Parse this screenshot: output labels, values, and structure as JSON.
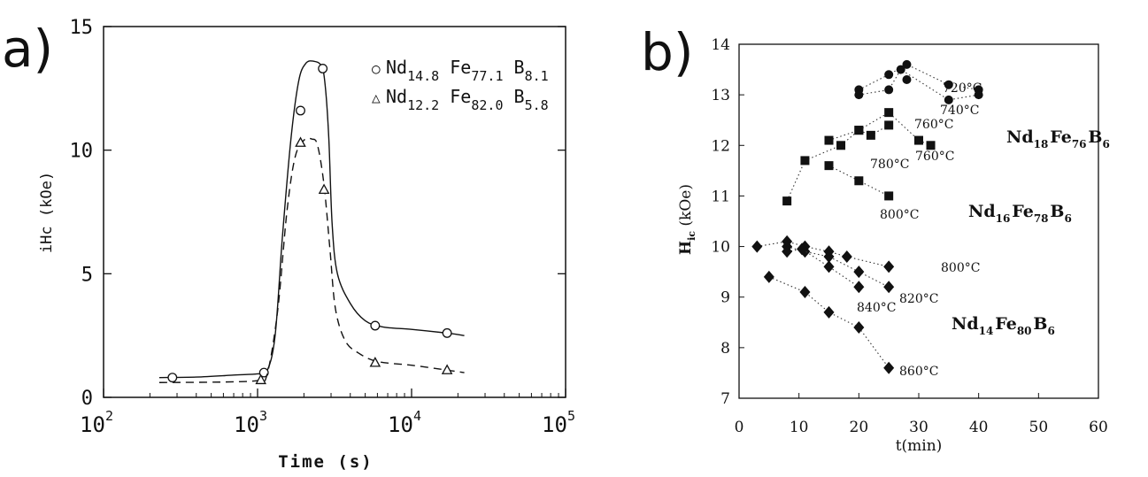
{
  "panels": {
    "a": "a)",
    "b": "b)"
  },
  "chart_data": [
    {
      "type": "line",
      "id": "a",
      "xlabel": "Time (s)",
      "ylabel": "iHc (kOe)",
      "xscale": "log",
      "xlim": [
        100,
        100000
      ],
      "ylim": [
        0,
        15
      ],
      "x_ticks": [
        {
          "base": "10",
          "exp": "2",
          "value": 100
        },
        {
          "base": "10",
          "exp": "3",
          "value": 1000
        },
        {
          "base": "10",
          "exp": "4",
          "value": 10000
        },
        {
          "base": "10",
          "exp": "5",
          "value": 100000
        }
      ],
      "y_ticks": [
        "0",
        "5",
        "10",
        "15"
      ],
      "legend_position": "top-right",
      "grid": false,
      "series": [
        {
          "name": "Nd14.8Fe77.1B8.1",
          "legend": {
            "symbol": "○",
            "parts": [
              [
                "Nd",
                "14.8"
              ],
              [
                "Fe",
                "77.1"
              ],
              [
                "B",
                "8.1"
              ]
            ]
          },
          "marker": "circle",
          "line": "solid",
          "points": [
            [
              280,
              0.8
            ],
            [
              1100,
              1.0
            ],
            [
              1900,
              11.6
            ],
            [
              2650,
              13.3
            ],
            [
              5800,
              2.9
            ],
            [
              17000,
              2.6
            ]
          ],
          "curve": [
            [
              230,
              0.8
            ],
            [
              400,
              0.82
            ],
            [
              700,
              0.9
            ],
            [
              1000,
              0.95
            ],
            [
              1150,
              1.05
            ],
            [
              1300,
              2.5
            ],
            [
              1450,
              6.5
            ],
            [
              1650,
              10.5
            ],
            [
              1850,
              12.8
            ],
            [
              2050,
              13.5
            ],
            [
              2300,
              13.6
            ],
            [
              2600,
              13.4
            ],
            [
              2750,
              12.6
            ],
            [
              2900,
              10.5
            ],
            [
              3050,
              7.0
            ],
            [
              3300,
              5.0
            ],
            [
              4000,
              3.8
            ],
            [
              5000,
              3.1
            ],
            [
              6500,
              2.85
            ],
            [
              10000,
              2.75
            ],
            [
              17000,
              2.6
            ],
            [
              22000,
              2.5
            ]
          ]
        },
        {
          "name": "Nd12.2Fe82.0B5.8",
          "legend": {
            "symbol": "△",
            "parts": [
              [
                "Nd",
                "12.2"
              ],
              [
                "Fe",
                "82.0"
              ],
              [
                "B",
                "5.8"
              ]
            ]
          },
          "marker": "triangle",
          "line": "dashed",
          "points": [
            [
              1050,
              0.7
            ],
            [
              1900,
              10.3
            ],
            [
              2700,
              8.4
            ],
            [
              5800,
              1.4
            ],
            [
              17000,
              1.1
            ]
          ],
          "curve": [
            [
              230,
              0.6
            ],
            [
              600,
              0.62
            ],
            [
              1000,
              0.68
            ],
            [
              1150,
              0.9
            ],
            [
              1350,
              3.5
            ],
            [
              1550,
              7.5
            ],
            [
              1750,
              9.7
            ],
            [
              2000,
              10.4
            ],
            [
              2250,
              10.45
            ],
            [
              2450,
              10.2
            ],
            [
              2700,
              8.6
            ],
            [
              2950,
              6.0
            ],
            [
              3200,
              3.6
            ],
            [
              3700,
              2.3
            ],
            [
              4500,
              1.8
            ],
            [
              6000,
              1.45
            ],
            [
              10000,
              1.3
            ],
            [
              17000,
              1.1
            ],
            [
              22000,
              1.0
            ]
          ]
        }
      ]
    },
    {
      "type": "scatter",
      "id": "b",
      "xlabel": "t(min)",
      "ylabel": {
        "main": "H",
        "sub": "ic",
        "rest": "(kOe)"
      },
      "xlim": [
        0,
        60
      ],
      "ylim": [
        7,
        14
      ],
      "x_ticks": [
        "0",
        "10",
        "20",
        "30",
        "40",
        "50",
        "60"
      ],
      "y_ticks": [
        "7",
        "8",
        "9",
        "10",
        "11",
        "12",
        "13",
        "14"
      ],
      "grid": false,
      "series": [
        {
          "name": "720°C",
          "composition": "Nd18Fe76B6",
          "marker": "circle",
          "points": [
            [
              20,
              13.1
            ],
            [
              25,
              13.4
            ],
            [
              28,
              13.6
            ],
            [
              35,
              13.2
            ],
            [
              40,
              13.1
            ]
          ]
        },
        {
          "name": "740°C",
          "composition": "Nd18Fe76B6",
          "marker": "circle",
          "points": [
            [
              20,
              13.0
            ],
            [
              25,
              13.1
            ],
            [
              27,
              13.5
            ],
            [
              35,
              12.9
            ],
            [
              40,
              13.0
            ]
          ]
        },
        {
          "name": "760°C",
          "composition": "Nd18Fe76B6",
          "marker": "circle",
          "points": [
            [
              28,
              13.3
            ]
          ]
        },
        {
          "name": "760°C",
          "composition": "Nd16Fe78B6",
          "marker": "square",
          "points": [
            [
              15,
              12.1
            ],
            [
              20,
              12.3
            ],
            [
              25,
              12.65
            ],
            [
              30,
              12.1
            ],
            [
              32,
              12.0
            ]
          ]
        },
        {
          "name": "780°C",
          "composition": "Nd16Fe78B6",
          "marker": "square",
          "points": [
            [
              8,
              10.9
            ],
            [
              11,
              11.7
            ],
            [
              17,
              12.0
            ],
            [
              20,
              12.3
            ],
            [
              22,
              12.2
            ],
            [
              25,
              12.4
            ]
          ]
        },
        {
          "name": "800°C",
          "composition": "Nd16Fe78B6",
          "marker": "square",
          "points": [
            [
              15,
              11.6
            ],
            [
              20,
              11.3
            ],
            [
              25,
              11.0
            ]
          ]
        },
        {
          "name": "800°C",
          "composition": "Nd14Fe80B6",
          "marker": "diamond",
          "points": [
            [
              3,
              10.0
            ],
            [
              8,
              10.1
            ],
            [
              11,
              10.0
            ],
            [
              15,
              9.9
            ],
            [
              18,
              9.8
            ],
            [
              25,
              9.6
            ]
          ]
        },
        {
          "name": "820°C",
          "composition": "Nd14Fe80B6",
          "marker": "diamond",
          "points": [
            [
              8,
              10.0
            ],
            [
              11,
              9.9
            ],
            [
              15,
              9.8
            ],
            [
              20,
              9.5
            ],
            [
              25,
              9.2
            ]
          ]
        },
        {
          "name": "840°C",
          "composition": "Nd14Fe80B6",
          "marker": "diamond",
          "points": [
            [
              8,
              9.9
            ],
            [
              10.5,
              9.95
            ],
            [
              15,
              9.6
            ],
            [
              20,
              9.2
            ]
          ]
        },
        {
          "name": "860°C",
          "composition": "Nd14Fe80B6",
          "marker": "diamond",
          "points": [
            [
              5,
              9.4
            ],
            [
              11,
              9.1
            ],
            [
              15,
              8.7
            ],
            [
              20,
              8.4
            ],
            [
              25,
              7.6
            ]
          ]
        }
      ],
      "annotations": {
        "temperatures": [
          "720°C",
          "740°C",
          "760°C",
          "780°C",
          "760°C",
          "800°C",
          "800°C",
          "820°C",
          "840°C",
          "860°C"
        ],
        "compositions": [
          [
            [
              "Nd",
              "18"
            ],
            [
              "Fe",
              "76"
            ],
            [
              "B",
              "6"
            ]
          ],
          [
            [
              "Nd",
              "16"
            ],
            [
              "Fe",
              "78"
            ],
            [
              "B",
              "6"
            ]
          ],
          [
            [
              "Nd",
              "14"
            ],
            [
              "Fe",
              "80"
            ],
            [
              "B",
              "6"
            ]
          ]
        ]
      }
    }
  ]
}
